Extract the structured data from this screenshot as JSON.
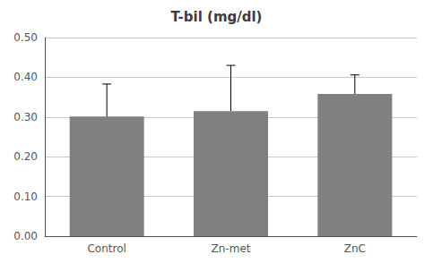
{
  "chart_data": {
    "type": "bar",
    "title": "T-bil (mg/dl)",
    "categories": [
      "Control",
      "Zn-met",
      "ZnC"
    ],
    "values": [
      0.301,
      0.315,
      0.358
    ],
    "errors": [
      0.082,
      0.115,
      0.048
    ],
    "color": "#808080",
    "error_color": "#000000",
    "ylim": [
      0.0,
      0.5
    ],
    "yticks": [
      {
        "value": 0.0,
        "label": "0.00"
      },
      {
        "value": 0.1,
        "label": "0.10"
      },
      {
        "value": 0.2,
        "label": "0.20"
      },
      {
        "value": 0.3,
        "label": "0.30"
      },
      {
        "value": 0.4,
        "label": "0.40"
      },
      {
        "value": 0.5,
        "label": "0.50"
      }
    ],
    "grid": true
  }
}
